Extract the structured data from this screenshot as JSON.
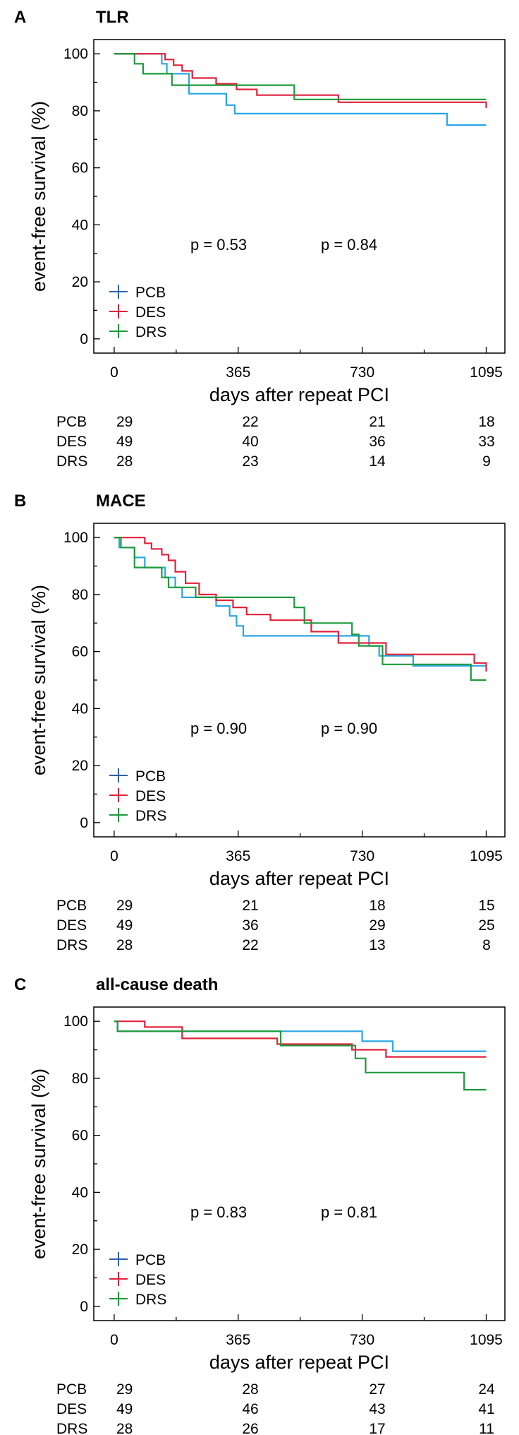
{
  "chart_data": [
    {
      "type": "line",
      "panel": "A",
      "title": "TLR",
      "xlabel": "days after repeat PCI",
      "ylabel": "event-free survival (%)",
      "xticks": [
        0,
        365,
        730,
        1095
      ],
      "yticks": [
        0,
        20,
        40,
        60,
        80,
        100
      ],
      "xlim": [
        -60,
        1150
      ],
      "ylim": [
        -5,
        105
      ],
      "p_values": [
        "p = 0.53",
        "p = 0.84"
      ],
      "legend_position": "bottom-left",
      "series": [
        {
          "name": "PCB",
          "color": "#2aa6e6",
          "legend_color": "#2e5fa8",
          "x": [
            0,
            140,
            155,
            220,
            330,
            355,
            980,
            1095
          ],
          "y": [
            100,
            96.5,
            93,
            86,
            82,
            79,
            75,
            75
          ]
        },
        {
          "name": "DES",
          "color": "#e0223c",
          "legend_color": "#e0223c",
          "x": [
            0,
            150,
            175,
            200,
            230,
            300,
            360,
            420,
            660,
            1095
          ],
          "y": [
            100,
            98,
            96,
            94,
            91.5,
            89.5,
            87.5,
            85.5,
            83,
            81
          ]
        },
        {
          "name": "DRS",
          "color": "#1e9a3a",
          "legend_color": "#1e9a3a",
          "x": [
            0,
            60,
            85,
            170,
            530,
            1095
          ],
          "y": [
            100,
            96.5,
            93,
            89,
            84,
            84
          ]
        }
      ],
      "risk_table": [
        {
          "label": "PCB",
          "values": [
            "29",
            "22",
            "21",
            "18"
          ]
        },
        {
          "label": "DES",
          "values": [
            "49",
            "40",
            "36",
            "33"
          ]
        },
        {
          "label": "DRS",
          "values": [
            "28",
            "23",
            "14",
            "9"
          ]
        }
      ]
    },
    {
      "type": "line",
      "panel": "B",
      "title": "MACE",
      "xlabel": "days after repeat PCI",
      "ylabel": "event-free survival (%)",
      "xticks": [
        0,
        365,
        730,
        1095
      ],
      "yticks": [
        0,
        20,
        40,
        60,
        80,
        100
      ],
      "xlim": [
        -60,
        1150
      ],
      "ylim": [
        -5,
        105
      ],
      "p_values": [
        "p = 0.90",
        "p = 0.90"
      ],
      "legend_position": "bottom-left",
      "series": [
        {
          "name": "PCB",
          "color": "#2aa6e6",
          "legend_color": "#2e5fa8",
          "x": [
            0,
            15,
            60,
            90,
            150,
            180,
            200,
            240,
            300,
            340,
            360,
            380,
            410,
            500,
            750,
            780,
            880,
            1095
          ],
          "y": [
            100,
            96.5,
            93,
            89.5,
            86,
            82.5,
            79,
            79,
            76,
            72.5,
            69,
            65.5,
            65.5,
            65.5,
            62,
            58.5,
            55,
            55
          ]
        },
        {
          "name": "DES",
          "color": "#e0223c",
          "legend_color": "#e0223c",
          "x": [
            0,
            90,
            110,
            140,
            160,
            180,
            210,
            250,
            300,
            350,
            390,
            460,
            580,
            660,
            800,
            1060,
            1095
          ],
          "y": [
            100,
            98,
            96,
            94,
            92,
            88,
            84,
            80,
            78,
            75.5,
            73,
            71,
            67,
            63,
            59,
            56,
            53
          ]
        },
        {
          "name": "DRS",
          "color": "#1e9a3a",
          "legend_color": "#1e9a3a",
          "x": [
            0,
            20,
            60,
            140,
            160,
            200,
            240,
            320,
            530,
            560,
            700,
            720,
            790,
            1050,
            1095
          ],
          "y": [
            100,
            96.5,
            89.5,
            86,
            82.5,
            82.5,
            79,
            79,
            75.5,
            70,
            66,
            62,
            55.5,
            50,
            50
          ]
        }
      ],
      "risk_table": [
        {
          "label": "PCB",
          "values": [
            "29",
            "21",
            "18",
            "15"
          ]
        },
        {
          "label": "DES",
          "values": [
            "49",
            "36",
            "29",
            "25"
          ]
        },
        {
          "label": "DRS",
          "values": [
            "28",
            "22",
            "13",
            "8"
          ]
        }
      ]
    },
    {
      "type": "line",
      "panel": "C",
      "title": "all-cause death",
      "xlabel": "days after repeat PCI",
      "ylabel": "event-free survival (%)",
      "xticks": [
        0,
        365,
        730,
        1095
      ],
      "yticks": [
        0,
        20,
        40,
        60,
        80,
        100
      ],
      "xlim": [
        -60,
        1150
      ],
      "ylim": [
        -5,
        105
      ],
      "p_values": [
        "p = 0.83",
        "p = 0.81"
      ],
      "legend_position": "bottom-left",
      "series": [
        {
          "name": "PCB",
          "color": "#2aa6e6",
          "legend_color": "#2e5fa8",
          "x": [
            0,
            10,
            500,
            730,
            820,
            1095
          ],
          "y": [
            100,
            96.5,
            96.5,
            93,
            89.5,
            89.5
          ]
        },
        {
          "name": "DES",
          "color": "#e0223c",
          "legend_color": "#e0223c",
          "x": [
            0,
            90,
            200,
            480,
            700,
            800,
            1095
          ],
          "y": [
            100,
            98,
            94,
            92,
            90,
            87.5,
            87.5
          ]
        },
        {
          "name": "DRS",
          "color": "#1e9a3a",
          "legend_color": "#1e9a3a",
          "x": [
            0,
            10,
            490,
            710,
            740,
            1030,
            1095
          ],
          "y": [
            100,
            96.5,
            91.5,
            87,
            82,
            76,
            76
          ]
        }
      ],
      "risk_table": [
        {
          "label": "PCB",
          "values": [
            "29",
            "28",
            "27",
            "24"
          ]
        },
        {
          "label": "DES",
          "values": [
            "49",
            "46",
            "43",
            "41"
          ]
        },
        {
          "label": "DRS",
          "values": [
            "28",
            "26",
            "17",
            "11"
          ]
        }
      ]
    }
  ]
}
